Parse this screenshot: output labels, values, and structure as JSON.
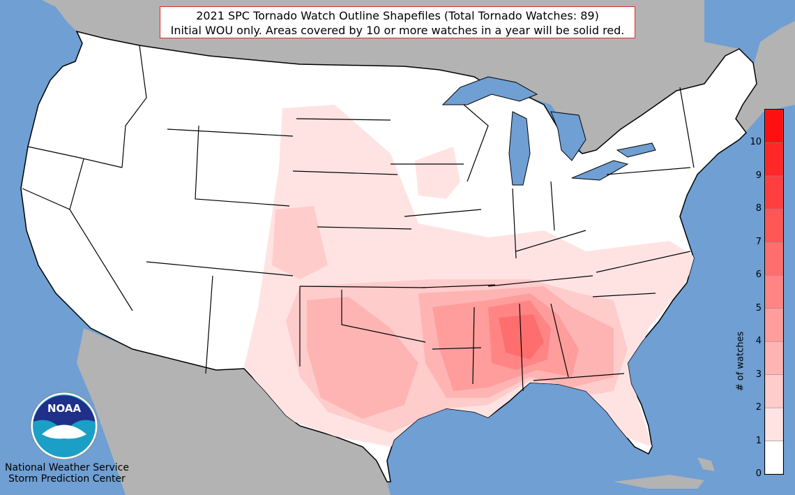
{
  "title_line1": "2021 SPC Tornado Watch Outline Shapefiles (Total Tornado Watches: 89)",
  "title_line2": "Initial WOU only. Areas covered by 10 or more watches in a year will be solid red.",
  "colorbar": {
    "label": "# of watches",
    "ticks": [
      "0",
      "1",
      "2",
      "3",
      "4",
      "5",
      "6",
      "7",
      "8",
      "9",
      "10"
    ],
    "colors": [
      "#ffffff",
      "#ffe3e3",
      "#ffcccc",
      "#ffb4b4",
      "#ff9d9d",
      "#ff8585",
      "#ff6e6e",
      "#ff5656",
      "#ff3f3f",
      "#ff2727",
      "#ff1010"
    ]
  },
  "colors": {
    "ocean": "#6f9fd3",
    "land_outside": "#b3b3b3",
    "usa_land": "#ffffff",
    "page_bg": "#dcdcdc"
  },
  "logo": {
    "text": "NOAA",
    "icon": "noaa-logo"
  },
  "credit_line1": "National Weather Service",
  "credit_line2": "Storm Prediction Center"
}
